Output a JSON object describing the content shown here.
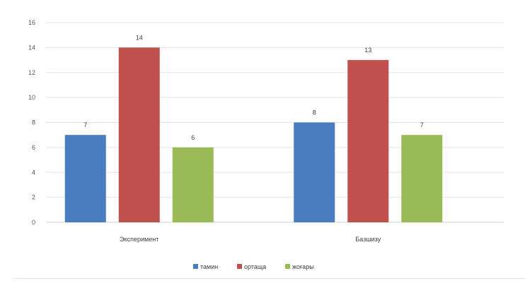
{
  "chart_data": {
    "type": "bar",
    "categories": [
      "Эксперимент",
      "Базшизу"
    ],
    "series": [
      {
        "name": "тамин",
        "color": "#4a7cc0",
        "values": [
          7,
          8
        ]
      },
      {
        "name": "ортаща",
        "color": "#c0504d",
        "values": [
          14,
          13
        ]
      },
      {
        "name": "жоғары",
        "color": "#9bbb59",
        "values": [
          6,
          7
        ]
      }
    ],
    "ylim": [
      0,
      16
    ],
    "yticks": [
      0,
      2,
      4,
      6,
      8,
      10,
      12,
      14,
      16
    ],
    "grid": true,
    "legend_position": "bottom",
    "data_labels": true,
    "title": "",
    "xlabel": "",
    "ylabel": ""
  }
}
